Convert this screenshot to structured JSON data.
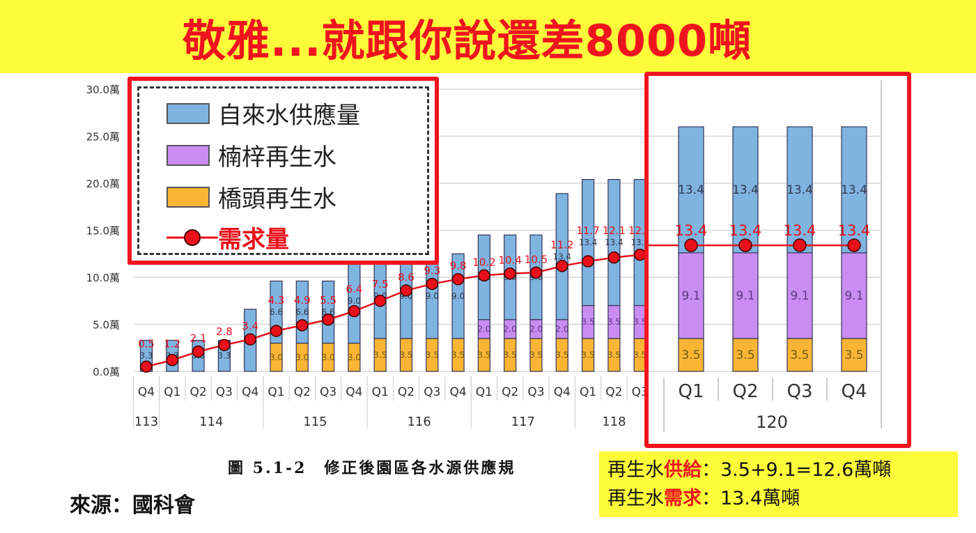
{
  "title": "敬雅...就跟你說還差8000噸",
  "caption": "圖 5.1-2　修正後園區各水源供應規",
  "source": "來源：國科會",
  "note": {
    "line1_prefix": "再生水",
    "line1_highlight": "供給",
    "line1_suffix": "：3.5+9.1=12.6萬噸",
    "line2_prefix": "再生水",
    "line2_highlight": "需求",
    "line2_suffix": "：13.4萬噸"
  },
  "colors": {
    "tap": "#7fb3e0",
    "nanzi": "#c98df2",
    "qiaotou": "#fbb535",
    "demand": "#e8101a",
    "highlight_box": "#f0141e",
    "title_bg": "#fdfb3a"
  },
  "chart_data": {
    "type": "bar",
    "stacked": true,
    "ylim": [
      0,
      30
    ],
    "y_ticks": [
      "0.0萬",
      "5.0萬",
      "10.0萬",
      "15.0萬",
      "20.0萬",
      "25.0萬",
      "30.0萬"
    ],
    "y_tick_values": [
      0,
      5,
      10,
      15,
      20,
      25,
      30
    ],
    "grid": true,
    "legend": {
      "placement": "top-left",
      "entries": [
        "自來水供應量",
        "楠梓再生水",
        "橋頭再生水",
        "需求量"
      ]
    },
    "categories": [
      "Q4",
      "Q1",
      "Q2",
      "Q3",
      "Q4",
      "Q1",
      "Q2",
      "Q3",
      "Q4",
      "Q1",
      "Q2",
      "Q3",
      "Q4",
      "Q1",
      "Q2",
      "Q3",
      "Q4",
      "Q1",
      "Q2",
      "Q3"
    ],
    "year_groups": [
      {
        "label": "113",
        "count": 1
      },
      {
        "label": "114",
        "count": 4
      },
      {
        "label": "115",
        "count": 4
      },
      {
        "label": "116",
        "count": 4
      },
      {
        "label": "117",
        "count": 4
      },
      {
        "label": "118",
        "count": 3
      }
    ],
    "series": [
      {
        "name": "橋頭再生水",
        "values": [
          0,
          0,
          0,
          0,
          0,
          3.0,
          3.0,
          3.0,
          3.0,
          3.5,
          3.5,
          3.5,
          3.5,
          3.5,
          3.5,
          3.5,
          3.5,
          3.5,
          3.5,
          3.5
        ]
      },
      {
        "name": "楠梓再生水",
        "values": [
          0,
          0,
          0,
          0,
          0,
          0,
          0,
          0,
          0,
          0,
          0,
          0,
          0,
          2.0,
          2.0,
          2.0,
          2.0,
          3.5,
          3.5,
          3.5
        ]
      },
      {
        "name": "自來水供應量",
        "values": [
          3.3,
          3.3,
          3.3,
          3.3,
          6.6,
          6.6,
          6.6,
          6.6,
          9.0,
          9.0,
          9.0,
          9.0,
          9.0,
          9.0,
          9.0,
          9.0,
          13.4,
          13.4,
          13.4,
          13.4
        ]
      },
      {
        "name": "需求量",
        "type": "line",
        "values": [
          0.5,
          1.2,
          2.1,
          2.8,
          3.4,
          4.3,
          4.9,
          5.5,
          6.4,
          7.5,
          8.6,
          9.3,
          9.8,
          10.2,
          10.4,
          10.5,
          11.2,
          11.7,
          12.1,
          12.4
        ]
      }
    ],
    "inset": {
      "year": "120",
      "categories": [
        "Q1",
        "Q2",
        "Q3",
        "Q4"
      ],
      "series": [
        {
          "name": "橋頭再生水",
          "values": [
            3.5,
            3.5,
            3.5,
            3.5
          ]
        },
        {
          "name": "楠梓再生水",
          "values": [
            9.1,
            9.1,
            9.1,
            9.1
          ]
        },
        {
          "name": "自來水供應量",
          "values": [
            13.4,
            13.4,
            13.4,
            13.4
          ]
        },
        {
          "name": "需求量",
          "type": "line",
          "values": [
            13.4,
            13.4,
            13.4,
            13.4
          ]
        }
      ]
    }
  }
}
